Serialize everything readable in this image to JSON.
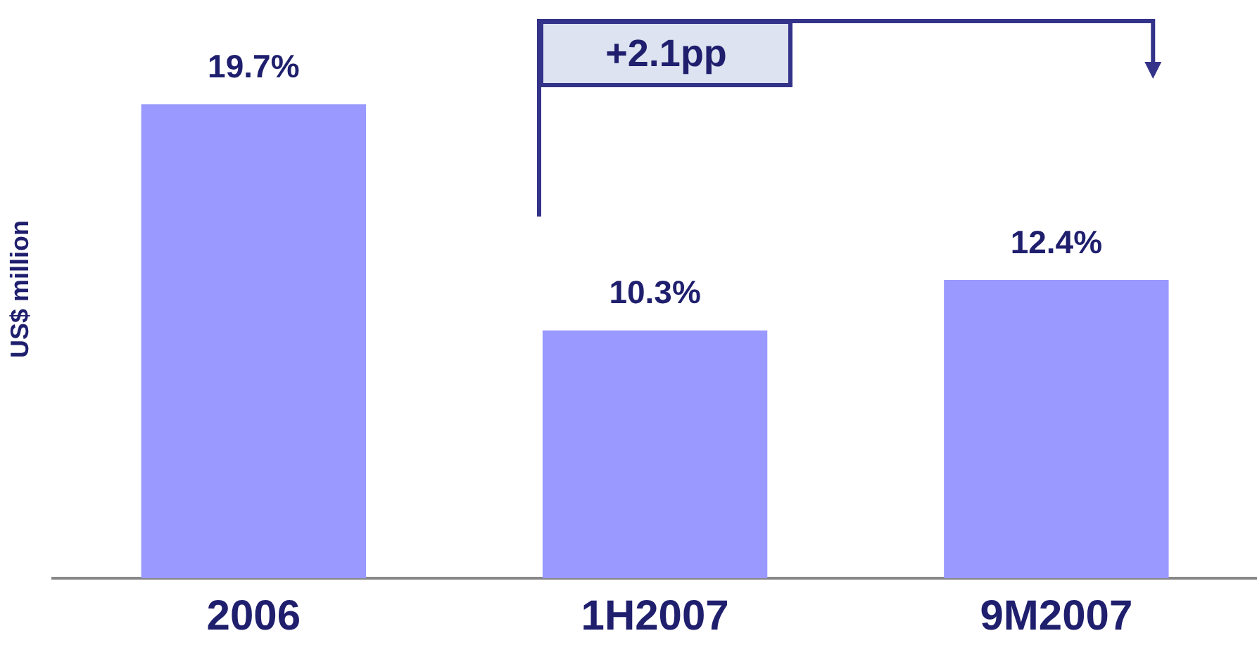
{
  "chart_data": {
    "type": "bar",
    "categories": [
      "2006",
      "1H2007",
      "9M2007"
    ],
    "values": [
      19.7,
      10.3,
      12.4
    ],
    "color": "#9999ff",
    "value_labels": [
      "19.7%",
      "10.3%",
      "12.4%"
    ],
    "ylabel": "US$ million",
    "annotations": [
      "+2.1pp"
    ],
    "grid": false,
    "legend": false
  }
}
